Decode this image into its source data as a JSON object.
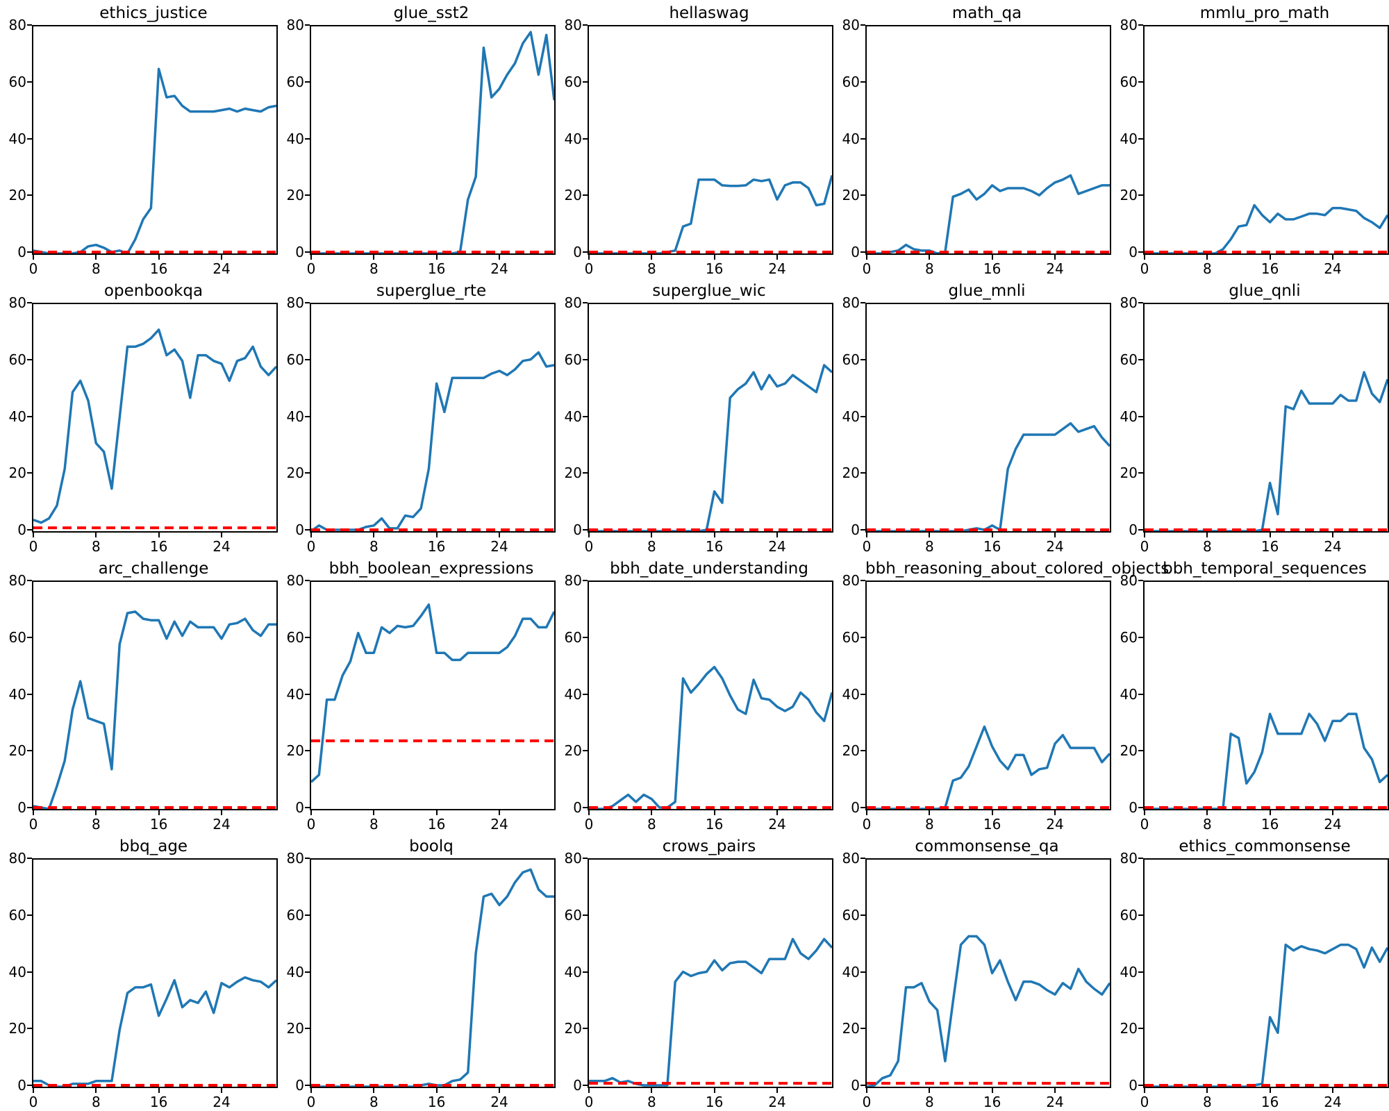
{
  "figure_style": {
    "line_color": "#1f77b4",
    "baseline_color": "#ff0000",
    "background": "#ffffff",
    "ylim": [
      0,
      80
    ],
    "xlim": [
      0,
      31
    ],
    "y_ticks": [
      0,
      20,
      40,
      60,
      80
    ],
    "x_ticks": [
      0,
      8,
      16,
      24
    ],
    "grid": "off",
    "legend": "none"
  },
  "chart_data": [
    {
      "type": "line",
      "title": "ethics_justice",
      "ylabel": "",
      "xlabel": "",
      "baseline": 0.5,
      "values": [
        1,
        0.5,
        0,
        0,
        0,
        0,
        0.5,
        2.5,
        3,
        2,
        0.5,
        1,
        0,
        5,
        12,
        16,
        65,
        55,
        55.5,
        52,
        50,
        50,
        50,
        50,
        50.5,
        51,
        50,
        51,
        50.5,
        50,
        51.5,
        52
      ]
    },
    {
      "type": "line",
      "title": "glue_sst2",
      "ylabel": "",
      "xlabel": "",
      "baseline": 0.5,
      "values": [
        0,
        0,
        0,
        0,
        0,
        0,
        0,
        0,
        0,
        0,
        0,
        0,
        0,
        0,
        0,
        0,
        0,
        0,
        0,
        0.5,
        19,
        27,
        72.5,
        55,
        58,
        63,
        67,
        74,
        78,
        63,
        77,
        54
      ]
    },
    {
      "type": "line",
      "title": "hellaswag",
      "ylabel": "",
      "xlabel": "",
      "baseline": 0.5,
      "values": [
        0,
        0,
        0,
        0,
        0,
        0,
        0,
        0,
        0,
        0,
        0.5,
        1,
        9.5,
        10.5,
        26,
        26,
        26,
        24,
        23.8,
        23.8,
        24,
        26,
        25.5,
        26,
        19,
        24,
        25,
        25,
        23,
        17,
        17.5,
        27.5
      ]
    },
    {
      "type": "line",
      "title": "math_qa",
      "ylabel": "",
      "xlabel": "",
      "baseline": 0.5,
      "values": [
        0,
        0,
        0,
        0.5,
        1,
        3,
        1.5,
        1,
        1,
        0,
        0.5,
        20,
        21,
        22.5,
        19,
        21,
        24,
        22,
        23,
        23,
        23,
        22,
        20.5,
        23,
        25,
        26,
        27.5,
        21,
        22,
        23,
        24,
        24
      ]
    },
    {
      "type": "line",
      "title": "mmlu_pro_math",
      "ylabel": "",
      "xlabel": "",
      "baseline": 0.5,
      "values": [
        0,
        0,
        0,
        0,
        0,
        0,
        0,
        0,
        0,
        0,
        1.5,
        5,
        9.5,
        10,
        17,
        13.5,
        11,
        14,
        12,
        12,
        13,
        14,
        14,
        13.5,
        16,
        16,
        15.5,
        15,
        12.5,
        11,
        9,
        13.5
      ]
    },
    {
      "type": "line",
      "title": "openbookqa",
      "ylabel": "",
      "xlabel": "",
      "baseline": 1.2,
      "values": [
        4,
        3,
        4.5,
        9,
        22,
        49,
        53,
        46,
        31,
        28,
        15,
        40,
        65,
        65,
        66,
        68,
        71,
        62,
        64,
        60,
        47,
        62,
        62,
        60,
        59,
        53,
        60,
        61,
        65,
        58,
        55,
        58
      ]
    },
    {
      "type": "line",
      "title": "superglue_rte",
      "ylabel": "",
      "xlabel": "",
      "baseline": 0.5,
      "values": [
        0,
        2,
        0.5,
        0.5,
        0.5,
        0.5,
        0.5,
        1.5,
        2,
        4.5,
        1,
        1,
        5.5,
        5,
        8,
        22,
        52,
        42,
        54,
        54,
        54,
        54,
        54,
        55.5,
        56.5,
        55,
        57,
        60,
        60.5,
        63,
        58,
        58.5
      ]
    },
    {
      "type": "line",
      "title": "superglue_wic",
      "ylabel": "",
      "xlabel": "",
      "baseline": 0.5,
      "values": [
        0,
        0,
        0,
        0,
        0,
        0,
        0,
        0,
        0,
        0,
        0,
        0,
        0,
        0,
        0,
        0.5,
        14,
        10,
        47,
        50,
        52,
        56,
        50,
        55,
        51,
        52,
        55,
        53,
        51,
        49,
        58.5,
        56
      ]
    },
    {
      "type": "line",
      "title": "glue_mnli",
      "ylabel": "",
      "xlabel": "",
      "baseline": 0.5,
      "values": [
        0,
        0,
        0,
        0,
        0,
        0,
        0,
        0,
        0,
        0,
        0,
        0,
        0,
        0.5,
        1,
        0.5,
        2,
        0.5,
        22,
        29,
        34,
        34,
        34,
        34,
        34,
        36,
        38,
        35,
        36,
        37,
        33,
        30
      ]
    },
    {
      "type": "line",
      "title": "glue_qnli",
      "ylabel": "",
      "xlabel": "",
      "baseline": 0.5,
      "values": [
        0,
        0,
        0,
        0,
        0,
        0,
        0,
        0,
        0,
        0,
        0,
        0,
        0,
        0,
        0,
        0.5,
        17,
        6,
        44,
        43,
        49.5,
        45,
        45,
        45,
        45,
        48,
        46,
        46,
        56,
        48.5,
        45.5,
        53.5
      ]
    },
    {
      "type": "line",
      "title": "arc_challenge",
      "ylabel": "",
      "xlabel": "",
      "baseline": 0.5,
      "values": [
        1,
        0.5,
        0,
        8,
        17,
        35,
        45,
        32,
        31,
        30,
        14,
        58,
        69,
        69.5,
        67,
        66.5,
        66.5,
        60,
        66,
        61,
        66,
        64,
        64,
        64,
        60,
        65,
        65.5,
        67,
        63,
        61,
        65,
        65
      ]
    },
    {
      "type": "line",
      "title": "bbh_boolean_expressions",
      "ylabel": "",
      "xlabel": "",
      "baseline": 24,
      "values": [
        9.5,
        12,
        38.5,
        38.5,
        47,
        52,
        62,
        55,
        55,
        64,
        62,
        64.5,
        64,
        64.5,
        68,
        72,
        55,
        55,
        52.5,
        52.5,
        55,
        55,
        55,
        55,
        55,
        57,
        61,
        67,
        67,
        64,
        64,
        69.5
      ]
    },
    {
      "type": "line",
      "title": "bbh_date_understanding",
      "ylabel": "",
      "xlabel": "",
      "baseline": 0.5,
      "values": [
        0,
        0,
        0,
        1,
        3,
        5,
        2.5,
        5,
        3.5,
        0.5,
        0.5,
        2.5,
        46,
        41,
        44,
        47.5,
        50,
        46,
        40,
        35,
        33.5,
        45.5,
        39,
        38.5,
        36,
        34.5,
        36,
        41,
        38.5,
        34,
        31,
        41
      ]
    },
    {
      "type": "line",
      "title": "bbh_reasoning_about_colored_objects",
      "ylabel": "",
      "xlabel": "",
      "baseline": 0.5,
      "values": [
        0,
        0,
        0,
        0,
        0,
        0,
        0,
        0,
        0,
        0,
        0.5,
        10,
        11,
        15,
        22,
        29,
        22,
        17,
        14,
        19,
        19,
        12,
        14,
        14.5,
        23,
        26,
        21.5,
        21.5,
        21.5,
        21.5,
        16.5,
        19.5
      ]
    },
    {
      "type": "line",
      "title": "bbh_temporal_sequences",
      "ylabel": "",
      "xlabel": "",
      "baseline": 0.5,
      "values": [
        0,
        0,
        0,
        0,
        0,
        0,
        0,
        0,
        0,
        0,
        0,
        26.5,
        25,
        9,
        13,
        20,
        33.5,
        26.5,
        26.5,
        26.5,
        26.5,
        33.5,
        30,
        24,
        31,
        31,
        33.5,
        33.5,
        21.5,
        17.5,
        9.5,
        12
      ]
    },
    {
      "type": "line",
      "title": "bbq_age",
      "ylabel": "",
      "xlabel": "",
      "baseline": 0.5,
      "values": [
        2,
        2,
        0.5,
        0,
        0,
        1,
        1,
        1,
        2,
        2,
        2,
        20,
        33,
        35,
        35,
        36,
        25,
        31,
        37.5,
        28,
        30.5,
        29.5,
        33.5,
        26,
        36.5,
        35,
        37,
        38.5,
        37.5,
        37,
        35,
        37.5
      ]
    },
    {
      "type": "line",
      "title": "boolq",
      "ylabel": "",
      "xlabel": "",
      "baseline": 0.5,
      "values": [
        0,
        0,
        0,
        0,
        0,
        0,
        0,
        0,
        0,
        0,
        0,
        0,
        0,
        0,
        0.5,
        1,
        0.5,
        0.5,
        2,
        2.5,
        5,
        47,
        67,
        68,
        64,
        67,
        72,
        75.5,
        76.5,
        69.5,
        67,
        67
      ]
    },
    {
      "type": "line",
      "title": "crows_pairs",
      "ylabel": "",
      "xlabel": "",
      "baseline": 1.2,
      "values": [
        2,
        2,
        2,
        3,
        1.5,
        2,
        1,
        0.5,
        0.5,
        0.5,
        0.5,
        37,
        40.5,
        39,
        40,
        40.5,
        44.5,
        41,
        43.5,
        44,
        44,
        42,
        40,
        45,
        45,
        45,
        52,
        47,
        45,
        48,
        52,
        49
      ]
    },
    {
      "type": "line",
      "title": "commonsense_qa",
      "ylabel": "",
      "xlabel": "",
      "baseline": 1.2,
      "values": [
        0,
        0.5,
        3,
        4,
        9,
        35,
        35,
        36.5,
        30,
        27,
        9,
        30,
        50,
        53,
        53,
        50,
        40,
        44.5,
        37,
        30.5,
        37,
        37,
        36,
        34,
        32.5,
        36.5,
        34.5,
        41.5,
        37,
        34.5,
        32.5,
        36.5
      ]
    },
    {
      "type": "line",
      "title": "ethics_commonsense",
      "ylabel": "",
      "xlabel": "",
      "baseline": 0.5,
      "values": [
        0,
        0,
        0,
        0,
        0,
        0,
        0,
        0,
        0,
        0,
        0,
        0,
        0,
        0,
        0.5,
        1,
        24.5,
        19,
        50,
        48,
        49.5,
        48.5,
        48,
        47,
        48.5,
        50,
        50,
        48.5,
        42,
        49,
        44,
        49
      ]
    }
  ]
}
